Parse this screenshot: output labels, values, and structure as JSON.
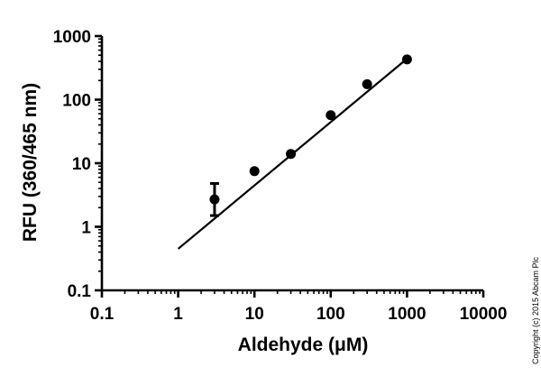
{
  "chart_data": {
    "type": "scatter",
    "title": "",
    "xlabel": "Aldehyde (μM)",
    "ylabel": "RFU (360/465 nm)",
    "xscale": "log",
    "yscale": "log",
    "xlim": [
      0.1,
      10000
    ],
    "ylim": [
      0.1,
      1000
    ],
    "x_ticks": [
      0.1,
      1,
      10,
      100,
      1000,
      10000
    ],
    "x_tick_labels": [
      "0.1",
      "1",
      "10",
      "100",
      "1000",
      "10000"
    ],
    "y_ticks": [
      0.1,
      1,
      10,
      100,
      1000
    ],
    "y_tick_labels": [
      "0.1",
      "1",
      "10",
      "100",
      "1000"
    ],
    "grid": false,
    "points": [
      {
        "x": 3,
        "y": 2.7,
        "err_low": 1.5,
        "err_high": 4.8
      },
      {
        "x": 10,
        "y": 7.5
      },
      {
        "x": 30,
        "y": 14
      },
      {
        "x": 100,
        "y": 57
      },
      {
        "x": 300,
        "y": 175
      },
      {
        "x": 1000,
        "y": 430
      }
    ],
    "fit_line": {
      "x": [
        1,
        1000
      ],
      "y": [
        0.45,
        440
      ]
    }
  },
  "copyright": "Copyright (c) 2015 Abcam Plc",
  "colors": {
    "ink": "#000000",
    "background": "#ffffff"
  }
}
